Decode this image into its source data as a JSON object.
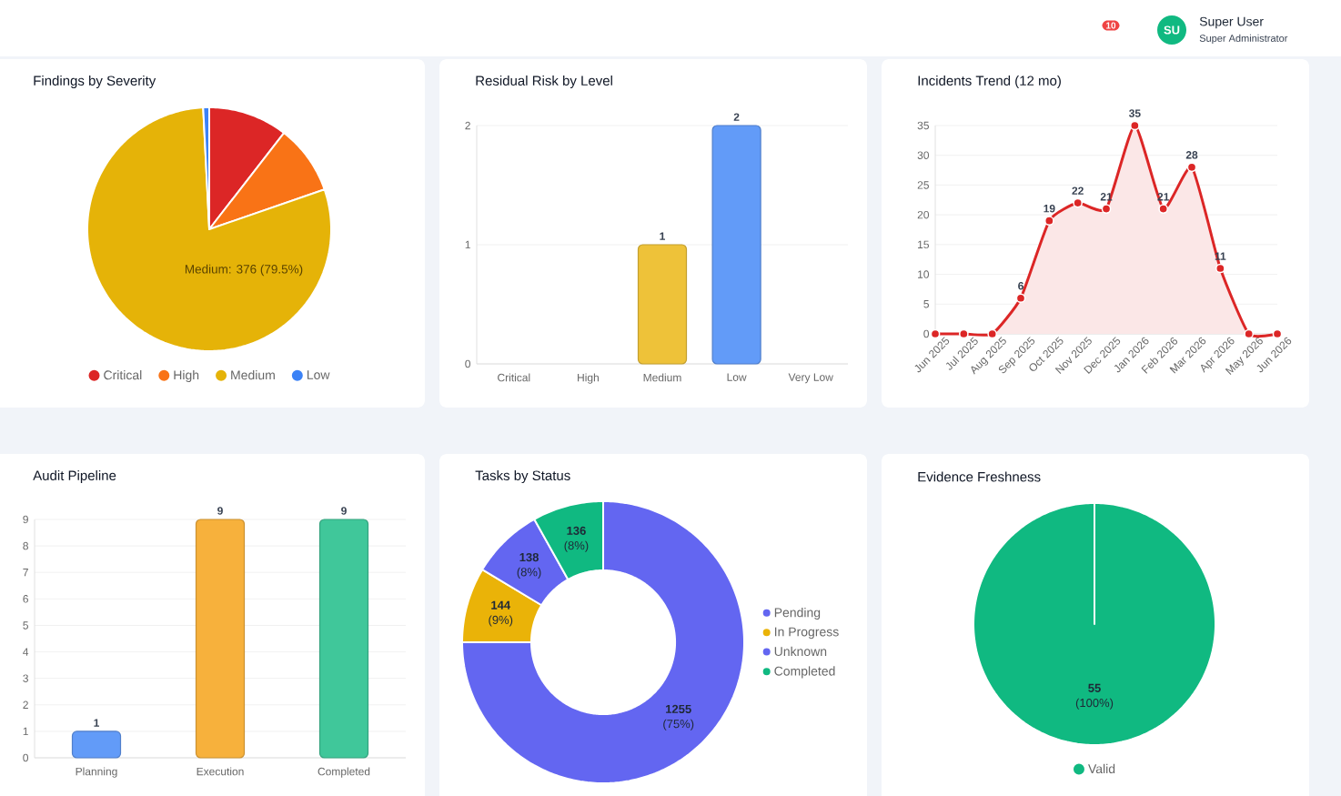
{
  "chart_data": [
    {
      "type": "other",
      "annotations": [
        "SU",
        "Super User",
        "Super Administrator",
        "10"
      ]
    },
    {
      "type": "pie",
      "title": "Findings by Severity",
      "categories": [
        "Critical",
        "High",
        "Medium",
        "Low"
      ],
      "values": [
        10.5,
        9.2,
        79.5,
        0.8
      ],
      "colors": [
        "#dc2626",
        "#f97316",
        "#e5b308",
        "#3b82f6"
      ],
      "legend": "bottom",
      "annotations": [
        "Medium: 376 (79.5%)"
      ]
    },
    {
      "type": "bar",
      "title": "Residual Risk by Level",
      "categories": [
        "Critical",
        "High",
        "Medium",
        "Low",
        "Very Low"
      ],
      "values": [
        0,
        0,
        1,
        2,
        0
      ],
      "colors": [
        null,
        null,
        "#eec239",
        "#629bf8",
        null
      ],
      "ylim": [
        0,
        2
      ],
      "yticks": [
        0,
        1,
        2
      ],
      "grid": "y",
      "value_labels": [
        null,
        null,
        "1",
        "2",
        null
      ]
    },
    {
      "type": "area",
      "title": "Incidents Trend (12 mo)",
      "categories": [
        "Jun 2025",
        "Jul 2025",
        "Aug 2025",
        "Sep 2025",
        "Oct 2025",
        "Nov 2025",
        "Dec 2025",
        "Jan 2026",
        "Feb 2026",
        "Mar 2026",
        "Apr 2026",
        "May 2026",
        "Jun 2026"
      ],
      "values": [
        0,
        0,
        0,
        6,
        19,
        22,
        21,
        35,
        21,
        28,
        11,
        0,
        0
      ],
      "color": "#dc2626",
      "ylim": [
        0,
        35
      ],
      "yticks": [
        0,
        5,
        10,
        15,
        20,
        25,
        30,
        35
      ],
      "grid": "y",
      "marker": "circle",
      "value_labels": [
        null,
        null,
        null,
        "6",
        "19",
        "22",
        "21",
        "35",
        "21",
        "28",
        "11",
        null,
        null
      ]
    },
    {
      "type": "bar",
      "title": "Audit Pipeline",
      "categories": [
        "Planning",
        "Execution",
        "Completed"
      ],
      "values": [
        1,
        9,
        9
      ],
      "colors": [
        "#629bf8",
        "#f7b13c",
        "#40c79a"
      ],
      "ylim": [
        0,
        9
      ],
      "yticks": [
        0,
        1,
        2,
        3,
        4,
        5,
        6,
        7,
        8,
        9
      ],
      "grid": "y",
      "data_labels": true
    },
    {
      "type": "donut",
      "title": "Tasks by Status",
      "categories": [
        "Pending",
        "In Progress",
        "Unknown",
        "Completed"
      ],
      "values": [
        1255,
        144,
        138,
        136
      ],
      "colors": [
        "#6366f1",
        "#eab308",
        "#6366f1",
        "#10b981"
      ],
      "legend": "right",
      "value_labels": [
        "**1255** (75%)",
        "**144** (9%)",
        "**138** (8%)",
        "**136** (8%)"
      ]
    },
    {
      "type": "pie",
      "title": "Evidence Freshness",
      "categories": [
        "Valid"
      ],
      "values": [
        55
      ],
      "colors": [
        "#10b981"
      ],
      "legend": "bottom",
      "value_labels": [
        "**55** (100%)"
      ]
    }
  ]
}
